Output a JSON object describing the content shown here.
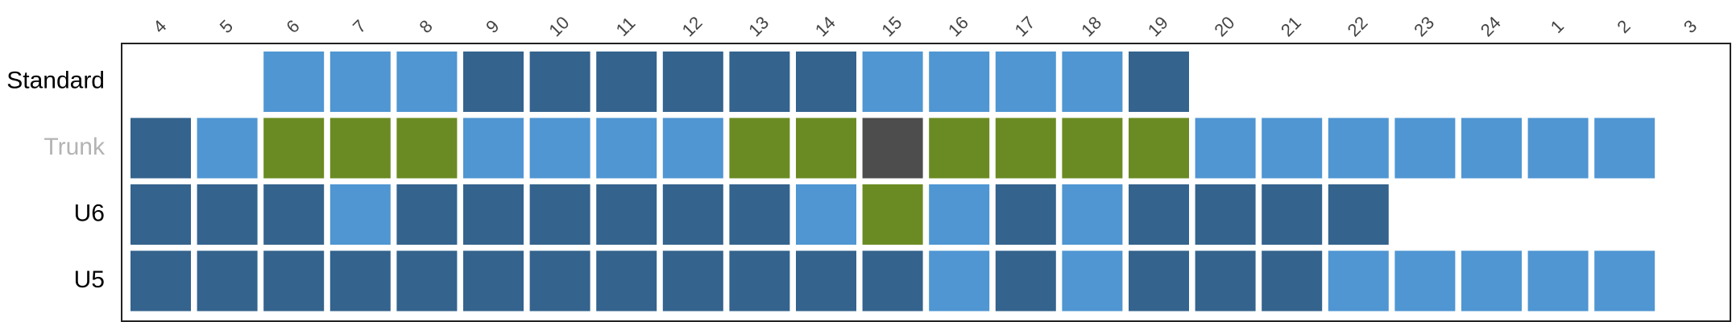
{
  "chart_data": {
    "type": "heatmap",
    "columns": [
      "4",
      "5",
      "6",
      "7",
      "8",
      "9",
      "10",
      "11",
      "12",
      "13",
      "14",
      "15",
      "16",
      "17",
      "18",
      "19",
      "20",
      "21",
      "22",
      "23",
      "24",
      "1",
      "2",
      "3"
    ],
    "rows": [
      {
        "label": "Standard",
        "label_color": "#000000",
        "cells": [
          null,
          null,
          "light",
          "light",
          "light",
          "dark",
          "dark",
          "dark",
          "dark",
          "dark",
          "dark",
          "light",
          "light",
          "light",
          "light",
          "dark",
          null,
          null,
          null,
          null,
          null,
          null,
          null,
          null
        ]
      },
      {
        "label": "Trunk",
        "label_color": "#b3b3b3",
        "cells": [
          "dark",
          "light",
          "green",
          "green",
          "green",
          "light",
          "light",
          "light",
          "light",
          "green",
          "green",
          "gray",
          "green",
          "green",
          "green",
          "green",
          "light",
          "light",
          "light",
          "light",
          "light",
          "light",
          "light",
          null
        ]
      },
      {
        "label": "U6",
        "label_color": "#000000",
        "cells": [
          "dark",
          "dark",
          "dark",
          "light",
          "dark",
          "dark",
          "dark",
          "dark",
          "dark",
          "dark",
          "light",
          "green",
          "light",
          "dark",
          "light",
          "dark",
          "dark",
          "dark",
          "dark",
          null,
          null,
          null,
          null,
          null
        ]
      },
      {
        "label": "U5",
        "label_color": "#000000",
        "cells": [
          "dark",
          "dark",
          "dark",
          "dark",
          "dark",
          "dark",
          "dark",
          "dark",
          "dark",
          "dark",
          "dark",
          "dark",
          "light",
          "dark",
          "light",
          "dark",
          "dark",
          "dark",
          "light",
          "light",
          "light",
          "light",
          "light",
          null
        ]
      }
    ],
    "colors": {
      "dark": "#34638d",
      "light": "#4f96d2",
      "green": "#6a8b23",
      "gray": "#4d4d4d"
    },
    "grid": false,
    "legend": "none"
  }
}
